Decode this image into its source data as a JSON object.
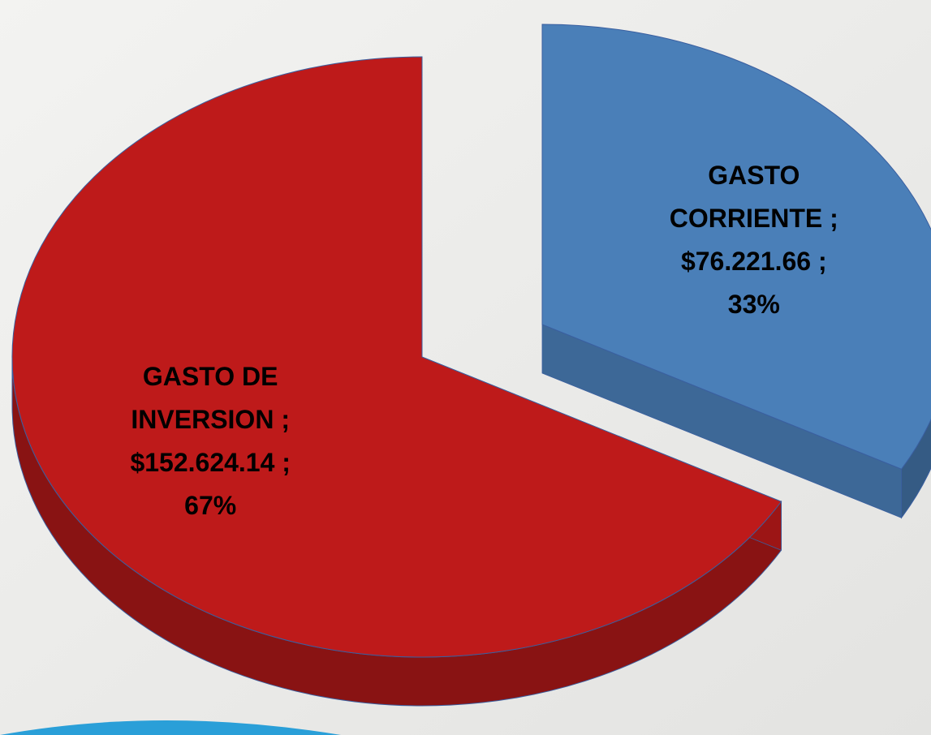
{
  "chart_data": {
    "type": "pie",
    "categories": [
      "GASTO DE INVERSION",
      "GASTO CORRIENTE"
    ],
    "values": [
      67,
      33
    ],
    "value_labels": [
      "67%",
      "33%"
    ],
    "amounts": [
      152624.14,
      76221.66
    ],
    "amount_labels": [
      "$152.624.14",
      "$76.221.66"
    ],
    "label_separator": ";",
    "colors": [
      "#be1a1a",
      "#4a7fb8"
    ],
    "explode": [
      false,
      true
    ]
  }
}
